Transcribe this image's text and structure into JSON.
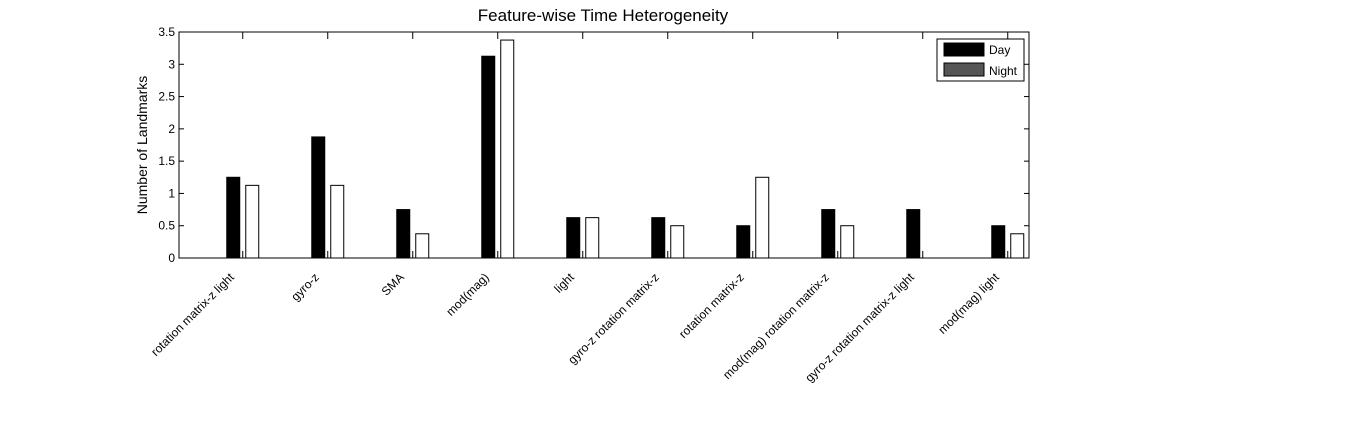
{
  "chart_data": {
    "type": "bar",
    "title": "Feature-wise Time Heterogeneity",
    "xlabel": "",
    "ylabel": "Number of Landmarks",
    "ylim": [
      0,
      3.5
    ],
    "yticks": [
      0,
      0.5,
      1,
      1.5,
      2,
      2.5,
      3,
      3.5
    ],
    "ytick_labels": [
      "0",
      "0.5",
      "1",
      "1.5",
      "2",
      "2.5",
      "3",
      "3.5"
    ],
    "categories": [
      "rotation matrix-z  light",
      "gyro-z",
      "SMA",
      "mod(mag)",
      "light",
      "gyro-z  rotation matrix-z",
      "rotation matrix-z",
      "mod(mag)  rotation matrix-z",
      "gyro-z  rotation matrix-z  light",
      "mod(mag)  light"
    ],
    "series": [
      {
        "name": "Day",
        "color": "#000000",
        "values": [
          1.25,
          1.875,
          0.75,
          3.125,
          0.625,
          0.625,
          0.5,
          0.75,
          0.75,
          0.5
        ]
      },
      {
        "name": "Night",
        "color": "#ffffff",
        "values": [
          1.125,
          1.125,
          0.375,
          3.375,
          0.625,
          0.5,
          1.25,
          0.5,
          0,
          0.375
        ]
      }
    ],
    "legend": {
      "position": "top-right",
      "entries": [
        {
          "label": "Day",
          "swatch": "#000000"
        },
        {
          "label": "Night",
          "swatch": "#555555"
        }
      ]
    },
    "grid": false
  }
}
